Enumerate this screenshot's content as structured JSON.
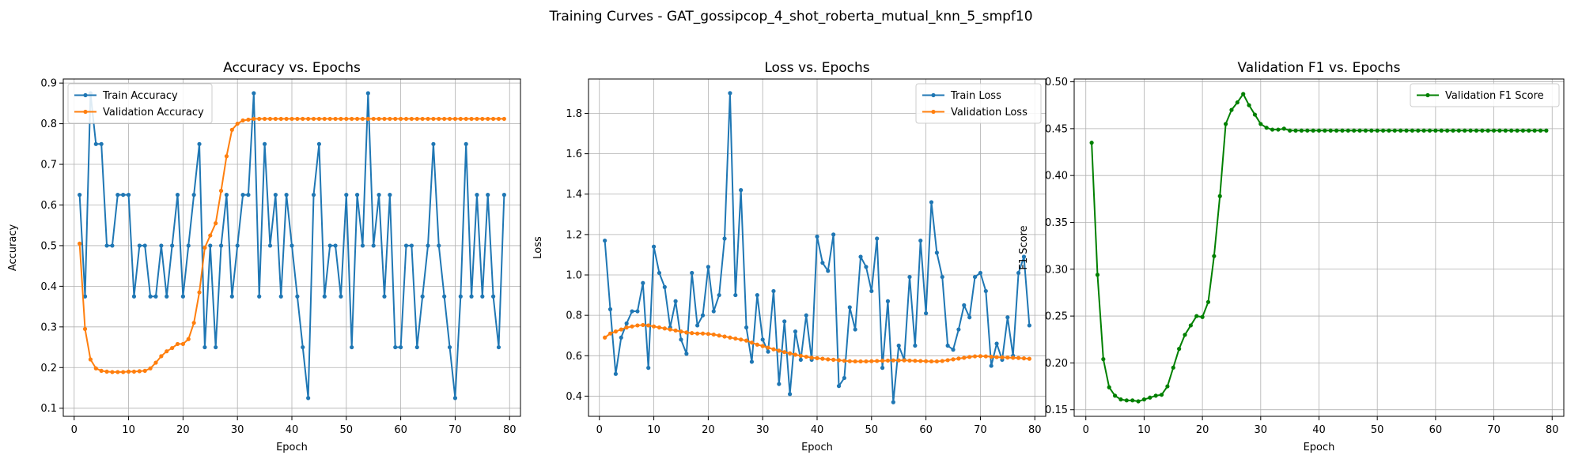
{
  "figure": {
    "suptitle": "Training Curves - GAT_gossipcop_4_shot_roberta_mutual_knn_5_smpf10"
  },
  "chart_data": [
    {
      "type": "line",
      "title": "Accuracy vs. Epochs",
      "xlabel": "Epoch",
      "ylabel": "Accuracy",
      "xlim": [
        -2,
        82
      ],
      "ylim": [
        0.08,
        0.91
      ],
      "xticks": [
        0,
        10,
        20,
        30,
        40,
        50,
        60,
        70,
        80
      ],
      "yticks": [
        0.1,
        0.2,
        0.3,
        0.4,
        0.5,
        0.6,
        0.7,
        0.8,
        0.9
      ],
      "ytick_decimals": 1,
      "grid": true,
      "legend_position": "upper-left",
      "series": [
        {
          "name": "Train Accuracy",
          "color": "#1f77b4",
          "x_start": 1,
          "values": [
            0.625,
            0.375,
            0.875,
            0.75,
            0.75,
            0.5,
            0.5,
            0.625,
            0.625,
            0.625,
            0.375,
            0.5,
            0.5,
            0.375,
            0.375,
            0.5,
            0.375,
            0.5,
            0.625,
            0.375,
            0.5,
            0.625,
            0.75,
            0.25,
            0.5,
            0.25,
            0.5,
            0.625,
            0.375,
            0.5,
            0.625,
            0.625,
            0.875,
            0.375,
            0.75,
            0.5,
            0.625,
            0.375,
            0.625,
            0.5,
            0.375,
            0.25,
            0.125,
            0.625,
            0.75,
            0.375,
            0.5,
            0.5,
            0.375,
            0.625,
            0.25,
            0.625,
            0.5,
            0.875,
            0.5,
            0.625,
            0.375,
            0.625,
            0.25,
            0.25,
            0.5,
            0.5,
            0.25,
            0.375,
            0.5,
            0.75,
            0.5,
            0.375,
            0.25,
            0.125,
            0.375,
            0.75,
            0.375,
            0.625,
            0.375,
            0.625,
            0.375,
            0.25,
            0.625
          ]
        },
        {
          "name": "Validation Accuracy",
          "color": "#ff7f0e",
          "x_start": 1,
          "values": [
            0.505,
            0.295,
            0.22,
            0.198,
            0.192,
            0.19,
            0.189,
            0.189,
            0.189,
            0.19,
            0.19,
            0.191,
            0.192,
            0.198,
            0.212,
            0.228,
            0.24,
            0.248,
            0.258,
            0.258,
            0.27,
            0.31,
            0.385,
            0.495,
            0.525,
            0.555,
            0.635,
            0.72,
            0.785,
            0.8,
            0.808,
            0.81,
            0.812,
            0.812,
            0.812,
            0.812,
            0.812,
            0.812,
            0.812,
            0.812,
            0.812,
            0.812,
            0.812,
            0.812,
            0.812,
            0.812,
            0.812,
            0.812,
            0.812,
            0.812,
            0.812,
            0.812,
            0.812,
            0.812,
            0.812,
            0.812,
            0.812,
            0.812,
            0.812,
            0.812,
            0.812,
            0.812,
            0.812,
            0.812,
            0.812,
            0.812,
            0.812,
            0.812,
            0.812,
            0.812,
            0.812,
            0.812,
            0.812,
            0.812,
            0.812,
            0.812,
            0.812,
            0.812,
            0.812
          ]
        }
      ]
    },
    {
      "type": "line",
      "title": "Loss vs. Epochs",
      "xlabel": "Epoch",
      "ylabel": "Loss",
      "xlim": [
        -2,
        82
      ],
      "ylim": [
        0.3,
        1.97
      ],
      "xticks": [
        0,
        10,
        20,
        30,
        40,
        50,
        60,
        70,
        80
      ],
      "yticks": [
        0.4,
        0.6,
        0.8,
        1.0,
        1.2,
        1.4,
        1.6,
        1.8
      ],
      "ytick_decimals": 1,
      "grid": true,
      "legend_position": "upper-right",
      "series": [
        {
          "name": "Train Loss",
          "color": "#1f77b4",
          "x_start": 1,
          "values": [
            1.17,
            0.83,
            0.51,
            0.69,
            0.76,
            0.82,
            0.82,
            0.96,
            0.54,
            1.14,
            1.01,
            0.94,
            0.74,
            0.87,
            0.68,
            0.61,
            1.01,
            0.75,
            0.8,
            1.04,
            0.82,
            0.9,
            1.18,
            1.9,
            0.9,
            1.42,
            0.74,
            0.57,
            0.9,
            0.68,
            0.62,
            0.92,
            0.46,
            0.77,
            0.41,
            0.72,
            0.58,
            0.8,
            0.58,
            1.19,
            1.06,
            1.02,
            1.2,
            0.45,
            0.49,
            0.84,
            0.73,
            1.09,
            1.04,
            0.92,
            1.18,
            0.54,
            0.87,
            0.37,
            0.65,
            0.58,
            0.99,
            0.65,
            1.17,
            0.81,
            1.36,
            1.11,
            0.99,
            0.65,
            0.63,
            0.73,
            0.85,
            0.79,
            0.99,
            1.01,
            0.92,
            0.55,
            0.66,
            0.58,
            0.79,
            0.6,
            1.01,
            1.09,
            0.75
          ]
        },
        {
          "name": "Validation Loss",
          "color": "#ff7f0e",
          "x_start": 1,
          "values": [
            0.69,
            0.71,
            0.72,
            0.73,
            0.74,
            0.745,
            0.75,
            0.752,
            0.75,
            0.745,
            0.74,
            0.735,
            0.73,
            0.725,
            0.72,
            0.715,
            0.712,
            0.71,
            0.71,
            0.708,
            0.705,
            0.7,
            0.695,
            0.69,
            0.685,
            0.68,
            0.675,
            0.665,
            0.655,
            0.648,
            0.64,
            0.632,
            0.625,
            0.618,
            0.612,
            0.605,
            0.6,
            0.595,
            0.59,
            0.588,
            0.585,
            0.582,
            0.58,
            0.578,
            0.575,
            0.573,
            0.572,
            0.572,
            0.572,
            0.573,
            0.574,
            0.575,
            0.576,
            0.577,
            0.577,
            0.577,
            0.576,
            0.575,
            0.574,
            0.573,
            0.572,
            0.572,
            0.574,
            0.578,
            0.582,
            0.586,
            0.59,
            0.594,
            0.597,
            0.598,
            0.597,
            0.595,
            0.593,
            0.592,
            0.591,
            0.59,
            0.589,
            0.587,
            0.585
          ]
        }
      ]
    },
    {
      "type": "line",
      "title": "Validation F1 vs. Epochs",
      "xlabel": "Epoch",
      "ylabel": "F1 Score",
      "xlim": [
        -2,
        82
      ],
      "ylim": [
        0.143,
        0.503
      ],
      "xticks": [
        0,
        10,
        20,
        30,
        40,
        50,
        60,
        70,
        80
      ],
      "yticks": [
        0.15,
        0.2,
        0.25,
        0.3,
        0.35,
        0.4,
        0.45,
        0.5
      ],
      "ytick_decimals": 2,
      "grid": true,
      "legend_position": "upper-right",
      "series": [
        {
          "name": "Validation F1 Score",
          "color": "#008000",
          "x_start": 1,
          "values": [
            0.435,
            0.294,
            0.204,
            0.174,
            0.165,
            0.161,
            0.16,
            0.16,
            0.159,
            0.161,
            0.163,
            0.165,
            0.166,
            0.175,
            0.195,
            0.215,
            0.23,
            0.24,
            0.25,
            0.249,
            0.265,
            0.314,
            0.378,
            0.455,
            0.47,
            0.478,
            0.487,
            0.475,
            0.465,
            0.455,
            0.451,
            0.449,
            0.449,
            0.45,
            0.448,
            0.448,
            0.448,
            0.448,
            0.448,
            0.448,
            0.448,
            0.448,
            0.448,
            0.448,
            0.448,
            0.448,
            0.448,
            0.448,
            0.448,
            0.448,
            0.448,
            0.448,
            0.448,
            0.448,
            0.448,
            0.448,
            0.448,
            0.448,
            0.448,
            0.448,
            0.448,
            0.448,
            0.448,
            0.448,
            0.448,
            0.448,
            0.448,
            0.448,
            0.448,
            0.448,
            0.448,
            0.448,
            0.448,
            0.448,
            0.448,
            0.448,
            0.448,
            0.448,
            0.448
          ]
        }
      ]
    }
  ]
}
